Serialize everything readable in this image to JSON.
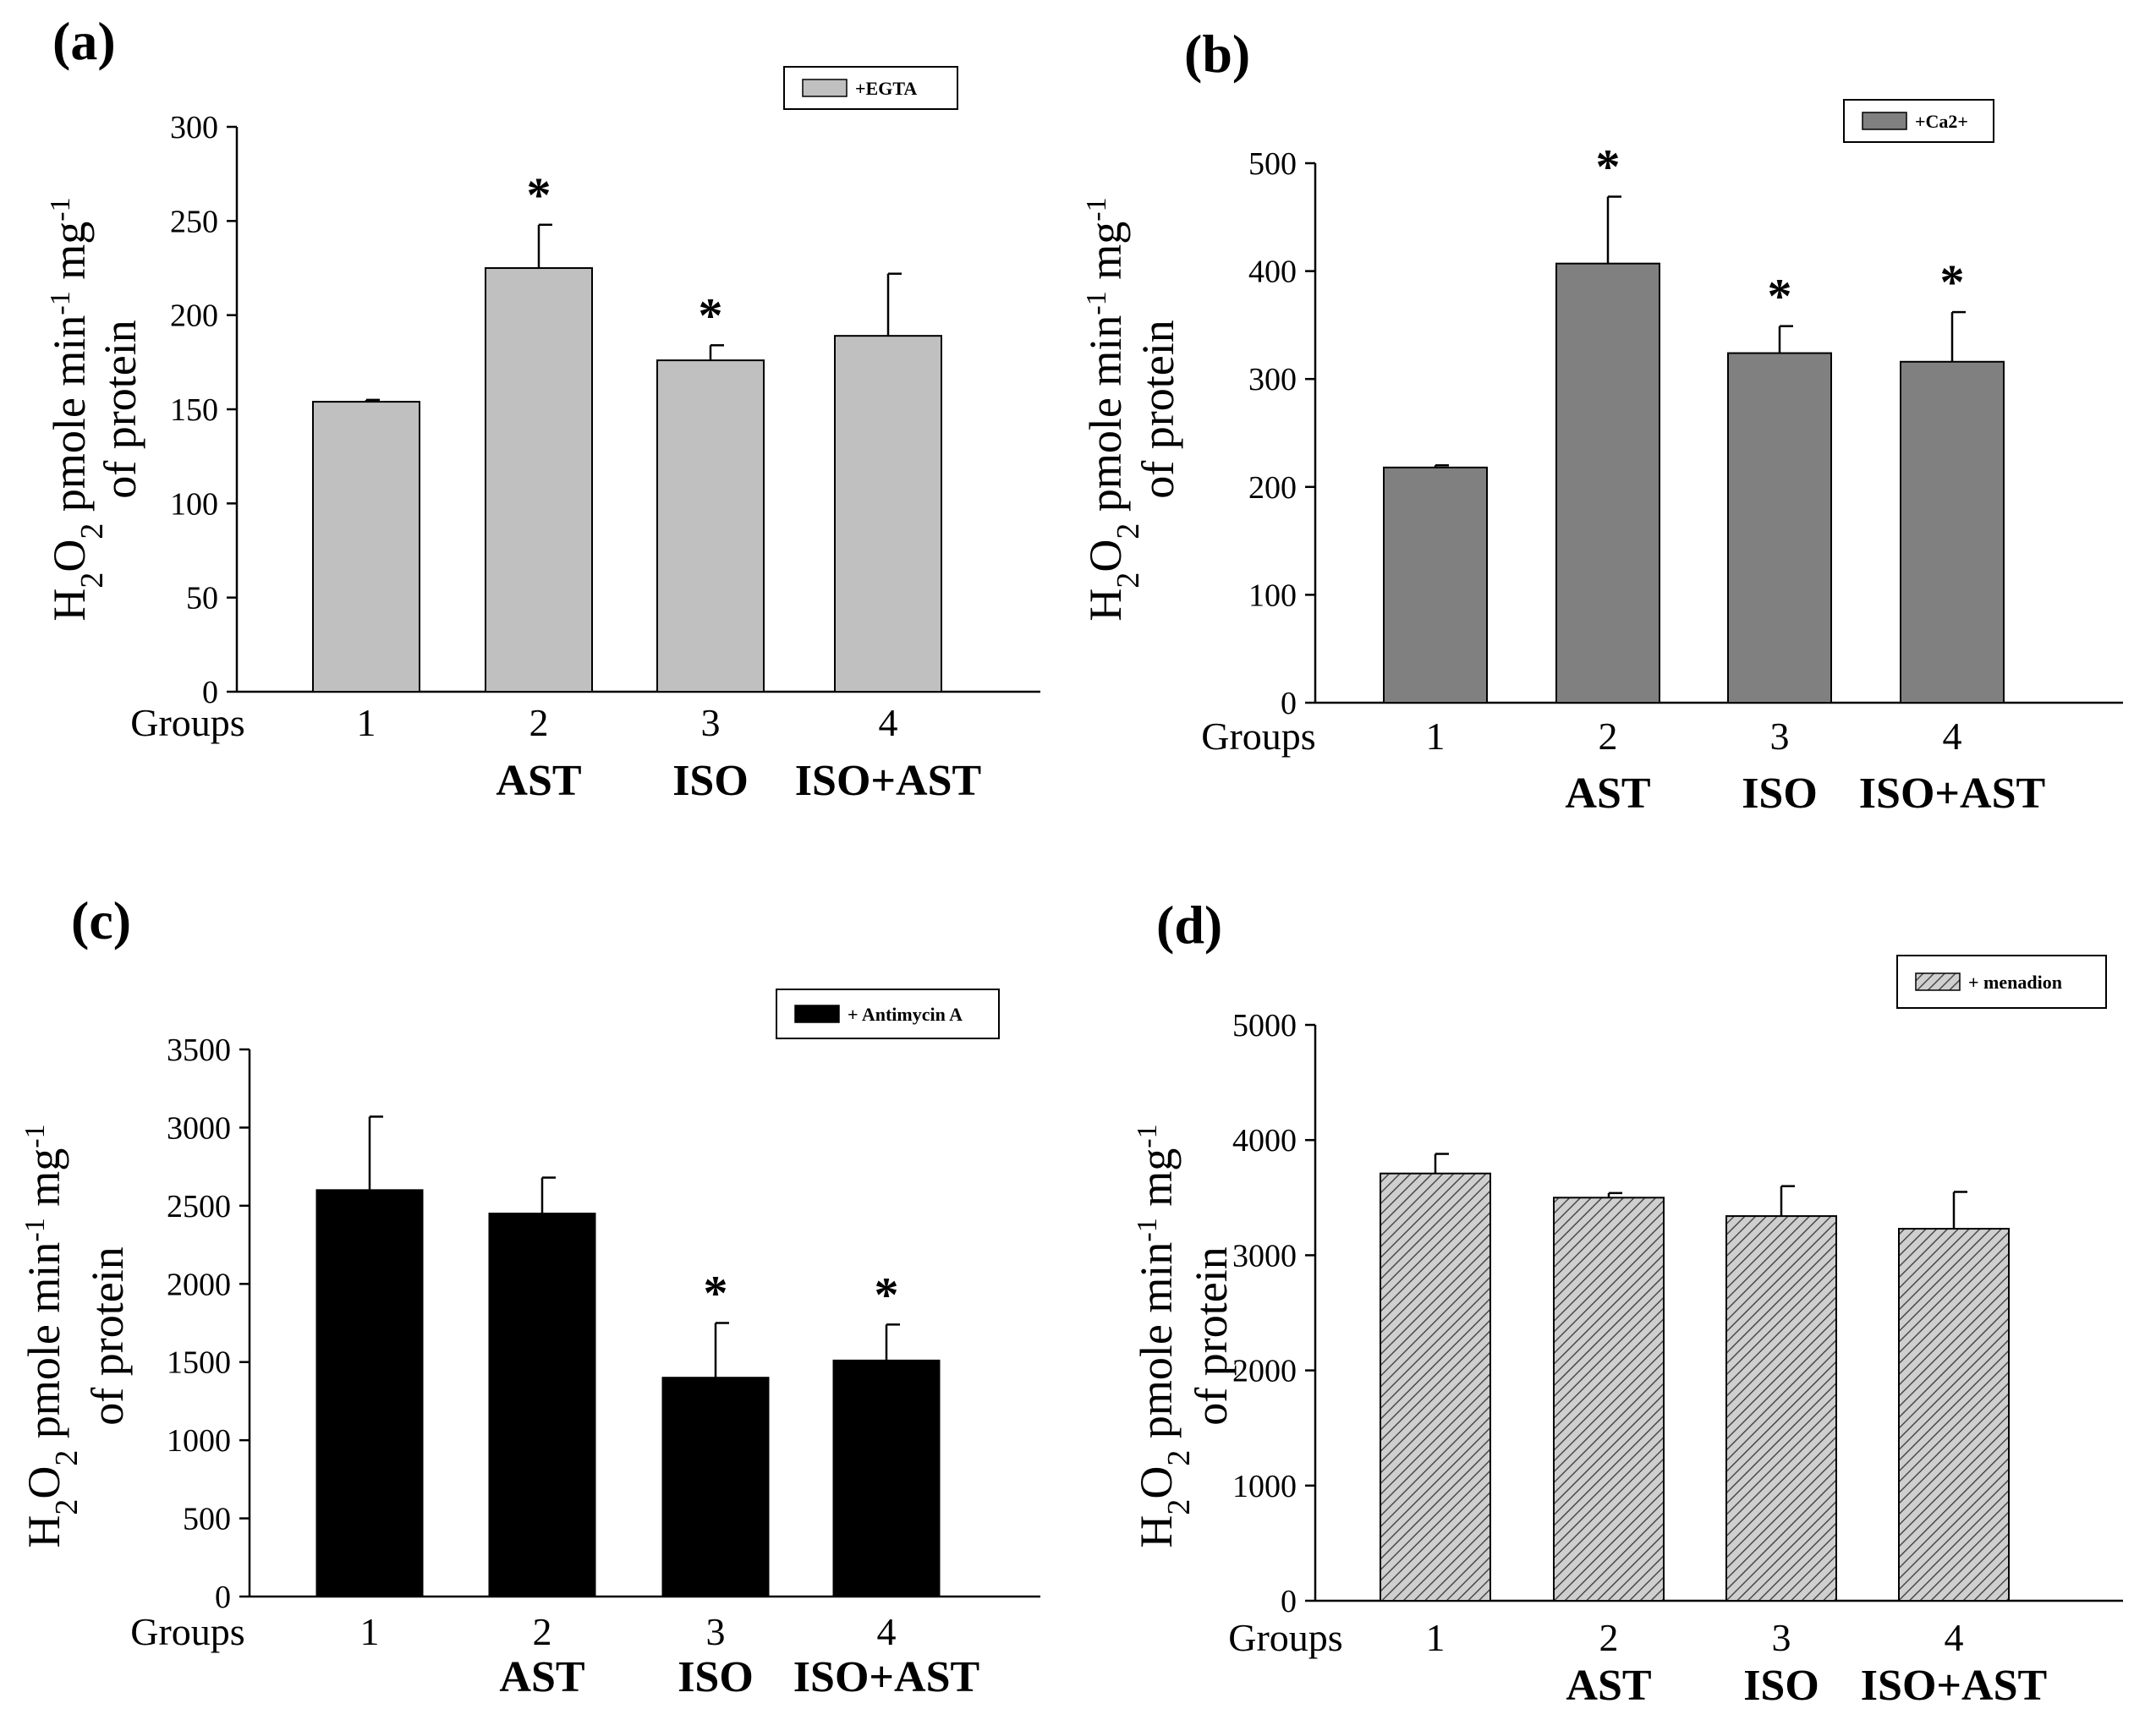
{
  "figure": {
    "categories": [
      "1",
      "2",
      "3",
      "4"
    ],
    "category_sublabels": [
      "",
      "AST",
      "ISO",
      "ISO+AST"
    ],
    "groups_label": "Groups"
  },
  "chart_data": [
    {
      "type": "bar",
      "panel": "(a)",
      "legend": "+EGTA",
      "ylabel_line1": "H2O2 pmole min-1 mg-1",
      "ylabel_line2": "of protein",
      "ylim": [
        0,
        300
      ],
      "yticks": [
        0,
        50,
        100,
        150,
        200,
        250,
        300
      ],
      "categories": [
        "1",
        "2",
        "3",
        "4"
      ],
      "values": [
        154,
        225,
        176,
        189
      ],
      "errors": [
        1,
        23,
        8,
        33
      ],
      "significance": [
        "",
        "*",
        "*",
        ""
      ],
      "color": "#c0c0c0",
      "pattern": "solid"
    },
    {
      "type": "bar",
      "panel": "(b)",
      "legend": "+Ca2+",
      "ylabel_line1": "H2O2 pmole min-1 mg-1",
      "ylabel_line2": "of protein",
      "ylim": [
        0,
        500
      ],
      "yticks": [
        0,
        100,
        200,
        300,
        400,
        500
      ],
      "categories": [
        "1",
        "2",
        "3",
        "4"
      ],
      "values": [
        218,
        407,
        324,
        316
      ],
      "errors": [
        2,
        62,
        25,
        46
      ],
      "significance": [
        "",
        "*",
        "*",
        "*"
      ],
      "color": "#808080",
      "pattern": "solid"
    },
    {
      "type": "bar",
      "panel": "(c)",
      "legend": "+ Antimycin A",
      "ylabel_line1": "H2O2 pmole min-1 mg-1",
      "ylabel_line2": "of protein",
      "ylim": [
        0,
        3500
      ],
      "yticks": [
        0,
        500,
        1000,
        1500,
        2000,
        2500,
        3000,
        3500
      ],
      "categories": [
        "1",
        "2",
        "3",
        "4"
      ],
      "values": [
        2600,
        2450,
        1400,
        1510
      ],
      "errors": [
        470,
        230,
        350,
        230
      ],
      "significance": [
        "",
        "",
        "*",
        "*"
      ],
      "color": "#000000",
      "pattern": "solid"
    },
    {
      "type": "bar",
      "panel": "(d)",
      "legend": "+ menadion",
      "ylabel_line1": "H2O2 pmole min-1 mg-1",
      "ylabel_line2": "of protein",
      "ylim": [
        0,
        5000
      ],
      "yticks": [
        0,
        1000,
        2000,
        3000,
        4000,
        5000
      ],
      "categories": [
        "1",
        "2",
        "3",
        "4"
      ],
      "values": [
        3710,
        3500,
        3340,
        3230
      ],
      "errors": [
        170,
        40,
        260,
        320
      ],
      "significance": [
        "",
        "",
        "",
        ""
      ],
      "color": "#c8c8c8",
      "pattern": "hatch"
    }
  ]
}
